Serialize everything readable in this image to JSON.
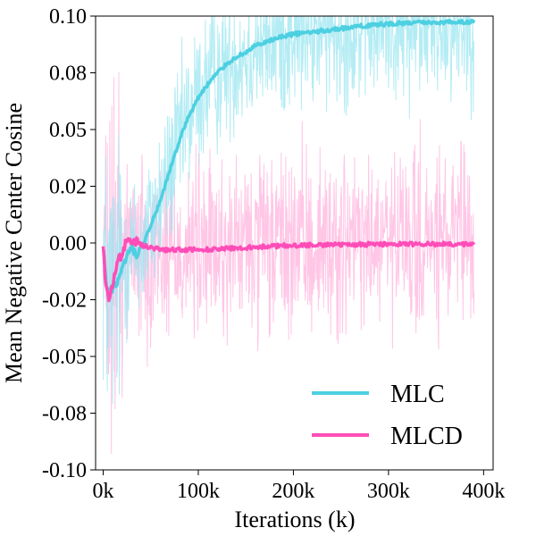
{
  "chart_data": {
    "type": "line",
    "title": "",
    "xlabel": "Iterations (k)",
    "ylabel": "Mean Negative Center Cosine",
    "xlim": [
      -8,
      410
    ],
    "ylim": [
      -0.1,
      0.1
    ],
    "x_ticks": [
      {
        "value": 0,
        "label": "0k"
      },
      {
        "value": 100,
        "label": "100k"
      },
      {
        "value": 200,
        "label": "200k"
      },
      {
        "value": 300,
        "label": "300k"
      },
      {
        "value": 400,
        "label": "400k"
      }
    ],
    "y_ticks": [
      {
        "value": -0.1,
        "label": "-0.10"
      },
      {
        "value": -0.075,
        "label": "-0.08"
      },
      {
        "value": -0.05,
        "label": "-0.05"
      },
      {
        "value": -0.025,
        "label": "-0.02"
      },
      {
        "value": 0.0,
        "label": "0.00"
      },
      {
        "value": 0.025,
        "label": "0.02"
      },
      {
        "value": 0.05,
        "label": "0.05"
      },
      {
        "value": 0.075,
        "label": "0.08"
      },
      {
        "value": 0.1,
        "label": "0.10"
      }
    ],
    "grid": false,
    "legend": "lower right",
    "series": [
      {
        "name": "MLC",
        "color": "#4dd0e1",
        "noise_color": "#9be6f0",
        "noise_amplitude": 0.025,
        "x": [
          0,
          3,
          6,
          10,
          15,
          20,
          25,
          30,
          35,
          40,
          50,
          60,
          70,
          80,
          90,
          100,
          110,
          120,
          130,
          140,
          150,
          160,
          170,
          180,
          190,
          200,
          220,
          240,
          260,
          280,
          300,
          320,
          340,
          360,
          380,
          390
        ],
        "values": [
          -0.002,
          -0.018,
          -0.022,
          -0.02,
          -0.017,
          -0.012,
          -0.006,
          -0.002,
          -0.006,
          -0.003,
          0.008,
          0.018,
          0.032,
          0.045,
          0.056,
          0.064,
          0.07,
          0.075,
          0.079,
          0.082,
          0.084,
          0.087,
          0.088,
          0.09,
          0.091,
          0.092,
          0.093,
          0.094,
          0.095,
          0.096,
          0.0965,
          0.097,
          0.0972,
          0.0973,
          0.0975,
          0.0975
        ]
      },
      {
        "name": "MLCD",
        "color": "#ff4db8",
        "noise_color": "#ffb3de",
        "noise_amplitude": 0.03,
        "x": [
          0,
          3,
          6,
          10,
          15,
          20,
          25,
          30,
          35,
          40,
          50,
          60,
          80,
          100,
          150,
          200,
          250,
          300,
          350,
          390
        ],
        "values": [
          -0.002,
          -0.02,
          -0.025,
          -0.018,
          -0.008,
          -0.005,
          0.002,
          -0.001,
          0.001,
          -0.001,
          -0.002,
          -0.003,
          -0.003,
          -0.003,
          -0.002,
          -0.001,
          -0.0008,
          -0.0005,
          -0.0005,
          -0.0005
        ]
      }
    ]
  }
}
